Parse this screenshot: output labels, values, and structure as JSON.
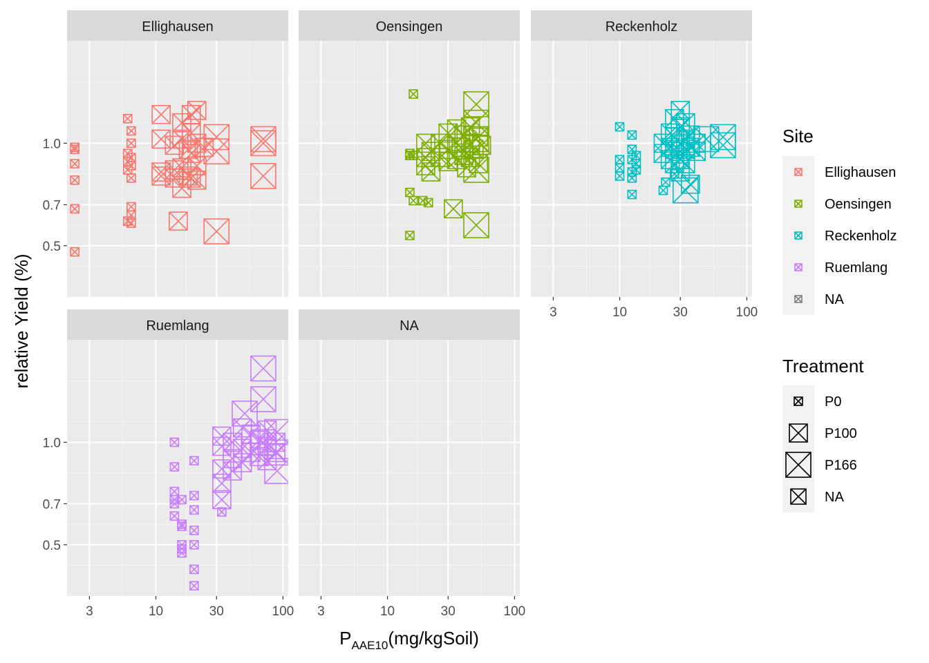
{
  "chart_data": {
    "type": "scatter",
    "facets": [
      "Ellighausen",
      "Oensingen",
      "Reckenholz",
      "Ruemlang",
      "NA"
    ],
    "x_scale": "log10",
    "xlim": [
      2,
      110
    ],
    "ylim": [
      0.25,
      1.5
    ],
    "x_ticks": [
      3,
      10,
      30,
      100
    ],
    "x_tick_labels": [
      "3",
      "10",
      "30",
      "100"
    ],
    "y_ticks": [
      0.5,
      0.7,
      1.0
    ],
    "y_tick_labels": [
      "0.5",
      "0.7",
      "1.0"
    ],
    "xlabel_main": "P",
    "xlabel_sub": "AAE10",
    "xlabel_rest": "(mg/kgSoil)",
    "ylabel": "relative Yield (%)",
    "grid": true,
    "legend_position": "right",
    "site_legend": {
      "title": "Site",
      "entries": [
        {
          "label": "Ellighausen",
          "color": "#F8766D"
        },
        {
          "label": "Oensingen",
          "color": "#7CAE00"
        },
        {
          "label": "Reckenholz",
          "color": "#00BFC4"
        },
        {
          "label": "Ruemlang",
          "color": "#C77CFF"
        },
        {
          "label": "NA",
          "color": "#7F7F7F"
        }
      ]
    },
    "treatment_legend": {
      "title": "Treatment",
      "entries": [
        {
          "label": "P0",
          "size": "small"
        },
        {
          "label": "P100",
          "size": "medium"
        },
        {
          "label": "P166",
          "size": "large"
        },
        {
          "label": "NA",
          "size": "medium-small"
        }
      ]
    },
    "series": [
      {
        "facet": "Ellighausen",
        "color": "#F8766D",
        "points": [
          {
            "x": 2.3,
            "y": 0.98,
            "t": "P0"
          },
          {
            "x": 2.3,
            "y": 0.97,
            "t": "P0"
          },
          {
            "x": 2.3,
            "y": 0.9,
            "t": "P0"
          },
          {
            "x": 2.3,
            "y": 0.82,
            "t": "P0"
          },
          {
            "x": 2.3,
            "y": 0.68,
            "t": "P0"
          },
          {
            "x": 2.3,
            "y": 0.47,
            "t": "P0"
          },
          {
            "x": 6.0,
            "y": 1.12,
            "t": "P0"
          },
          {
            "x": 6.0,
            "y": 0.95,
            "t": "P0"
          },
          {
            "x": 6.0,
            "y": 0.91,
            "t": "P0"
          },
          {
            "x": 6.0,
            "y": 0.87,
            "t": "P0"
          },
          {
            "x": 6.0,
            "y": 0.62,
            "t": "P0"
          },
          {
            "x": 6.4,
            "y": 1.06,
            "t": "P0"
          },
          {
            "x": 6.4,
            "y": 1.0,
            "t": "P0"
          },
          {
            "x": 6.4,
            "y": 0.93,
            "t": "P0"
          },
          {
            "x": 6.4,
            "y": 0.89,
            "t": "P0"
          },
          {
            "x": 6.4,
            "y": 0.83,
            "t": "P0"
          },
          {
            "x": 6.4,
            "y": 0.69,
            "t": "P0"
          },
          {
            "x": 6.4,
            "y": 0.65,
            "t": "P0"
          },
          {
            "x": 6.4,
            "y": 0.61,
            "t": "P0"
          },
          {
            "x": 11,
            "y": 1.14,
            "t": "P100"
          },
          {
            "x": 11,
            "y": 1.02,
            "t": "P100"
          },
          {
            "x": 11,
            "y": 0.86,
            "t": "P100"
          },
          {
            "x": 11,
            "y": 0.84,
            "t": "P100"
          },
          {
            "x": 14,
            "y": 0.99,
            "t": "P100"
          },
          {
            "x": 14,
            "y": 0.87,
            "t": "P100"
          },
          {
            "x": 14,
            "y": 0.83,
            "t": "P100"
          },
          {
            "x": 15,
            "y": 0.62,
            "t": "P100"
          },
          {
            "x": 16,
            "y": 1.1,
            "t": "P100"
          },
          {
            "x": 16,
            "y": 1.02,
            "t": "P100"
          },
          {
            "x": 16,
            "y": 0.88,
            "t": "P100"
          },
          {
            "x": 16,
            "y": 0.78,
            "t": "P100"
          },
          {
            "x": 18,
            "y": 0.97,
            "t": "P100"
          },
          {
            "x": 18,
            "y": 0.84,
            "t": "P100"
          },
          {
            "x": 19,
            "y": 1.14,
            "t": "P100"
          },
          {
            "x": 19,
            "y": 1.05,
            "t": "P100"
          },
          {
            "x": 19,
            "y": 0.95,
            "t": "P100"
          },
          {
            "x": 19,
            "y": 0.83,
            "t": "P100"
          },
          {
            "x": 21,
            "y": 1.16,
            "t": "P100"
          },
          {
            "x": 21,
            "y": 1.0,
            "t": "P100"
          },
          {
            "x": 21,
            "y": 0.89,
            "t": "P100"
          },
          {
            "x": 21,
            "y": 0.82,
            "t": "P100"
          },
          {
            "x": 24,
            "y": 0.98,
            "t": "P100"
          },
          {
            "x": 30,
            "y": 1.03,
            "t": "P166"
          },
          {
            "x": 30,
            "y": 0.96,
            "t": "P166"
          },
          {
            "x": 30,
            "y": 0.57,
            "t": "P166"
          },
          {
            "x": 70,
            "y": 1.02,
            "t": "P166"
          },
          {
            "x": 70,
            "y": 1.0,
            "t": "P166"
          },
          {
            "x": 70,
            "y": 0.84,
            "t": "P166"
          }
        ]
      },
      {
        "facet": "Oensingen",
        "color": "#7CAE00",
        "points": [
          {
            "x": 16,
            "y": 1.24,
            "t": "P0"
          },
          {
            "x": 15,
            "y": 0.95,
            "t": "P0"
          },
          {
            "x": 15,
            "y": 0.94,
            "t": "P0"
          },
          {
            "x": 15,
            "y": 0.76,
            "t": "P0"
          },
          {
            "x": 15,
            "y": 0.55,
            "t": "P0"
          },
          {
            "x": 16,
            "y": 0.72,
            "t": "P0"
          },
          {
            "x": 16,
            "y": 0.94,
            "t": "P0"
          },
          {
            "x": 19,
            "y": 0.72,
            "t": "P0"
          },
          {
            "x": 21,
            "y": 0.71,
            "t": "P0"
          },
          {
            "x": 20,
            "y": 1.0,
            "t": "P100"
          },
          {
            "x": 20,
            "y": 0.93,
            "t": "P100"
          },
          {
            "x": 20,
            "y": 0.89,
            "t": "P100"
          },
          {
            "x": 22,
            "y": 0.86,
            "t": "P100"
          },
          {
            "x": 22,
            "y": 0.96,
            "t": "P100"
          },
          {
            "x": 26,
            "y": 1.0,
            "t": "P100"
          },
          {
            "x": 26,
            "y": 0.93,
            "t": "P100"
          },
          {
            "x": 30,
            "y": 1.05,
            "t": "P100"
          },
          {
            "x": 30,
            "y": 0.97,
            "t": "P100"
          },
          {
            "x": 30,
            "y": 0.91,
            "t": "P100"
          },
          {
            "x": 33,
            "y": 0.68,
            "t": "P100"
          },
          {
            "x": 35,
            "y": 1.07,
            "t": "P100"
          },
          {
            "x": 35,
            "y": 1.0,
            "t": "P100"
          },
          {
            "x": 35,
            "y": 0.92,
            "t": "P100"
          },
          {
            "x": 38,
            "y": 0.98,
            "t": "P100"
          },
          {
            "x": 40,
            "y": 1.04,
            "t": "P100"
          },
          {
            "x": 40,
            "y": 0.94,
            "t": "P100"
          },
          {
            "x": 42,
            "y": 0.88,
            "t": "P100"
          },
          {
            "x": 45,
            "y": 1.08,
            "t": "P100"
          },
          {
            "x": 45,
            "y": 1.0,
            "t": "P100"
          },
          {
            "x": 45,
            "y": 0.93,
            "t": "P100"
          },
          {
            "x": 48,
            "y": 0.97,
            "t": "P100"
          },
          {
            "x": 52,
            "y": 1.03,
            "t": "P100"
          },
          {
            "x": 52,
            "y": 0.9,
            "t": "P100"
          },
          {
            "x": 55,
            "y": 0.99,
            "t": "P100"
          },
          {
            "x": 50,
            "y": 1.19,
            "t": "P166"
          },
          {
            "x": 50,
            "y": 1.1,
            "t": "P166"
          },
          {
            "x": 50,
            "y": 1.02,
            "t": "P166"
          },
          {
            "x": 50,
            "y": 0.87,
            "t": "P166"
          },
          {
            "x": 50,
            "y": 0.6,
            "t": "P166"
          }
        ]
      },
      {
        "facet": "Reckenholz",
        "color": "#00BFC4",
        "points": [
          {
            "x": 10,
            "y": 1.08,
            "t": "P0"
          },
          {
            "x": 10,
            "y": 0.92,
            "t": "P0"
          },
          {
            "x": 10,
            "y": 0.88,
            "t": "P0"
          },
          {
            "x": 10,
            "y": 0.84,
            "t": "P0"
          },
          {
            "x": 12.5,
            "y": 1.04,
            "t": "P0"
          },
          {
            "x": 12.5,
            "y": 0.97,
            "t": "P0"
          },
          {
            "x": 12.5,
            "y": 0.92,
            "t": "P0"
          },
          {
            "x": 12.5,
            "y": 0.86,
            "t": "P0"
          },
          {
            "x": 12.5,
            "y": 0.83,
            "t": "P0"
          },
          {
            "x": 12.5,
            "y": 0.75,
            "t": "P0"
          },
          {
            "x": 13.5,
            "y": 0.94,
            "t": "P0"
          },
          {
            "x": 13.5,
            "y": 0.9,
            "t": "P0"
          },
          {
            "x": 13.5,
            "y": 0.87,
            "t": "P0"
          },
          {
            "x": 22,
            "y": 0.77,
            "t": "P0"
          },
          {
            "x": 23,
            "y": 0.81,
            "t": "P0"
          },
          {
            "x": 27,
            "y": 0.85,
            "t": "P0"
          },
          {
            "x": 22,
            "y": 1.0,
            "t": "P100"
          },
          {
            "x": 22,
            "y": 0.95,
            "t": "P100"
          },
          {
            "x": 25,
            "y": 1.05,
            "t": "P100"
          },
          {
            "x": 25,
            "y": 0.98,
            "t": "P100"
          },
          {
            "x": 25,
            "y": 0.92,
            "t": "P100"
          },
          {
            "x": 27,
            "y": 1.12,
            "t": "P100"
          },
          {
            "x": 27,
            "y": 1.03,
            "t": "P100"
          },
          {
            "x": 27,
            "y": 0.97,
            "t": "P100"
          },
          {
            "x": 27,
            "y": 0.9,
            "t": "P100"
          },
          {
            "x": 30,
            "y": 1.16,
            "t": "P100"
          },
          {
            "x": 30,
            "y": 1.08,
            "t": "P100"
          },
          {
            "x": 30,
            "y": 1.0,
            "t": "P100"
          },
          {
            "x": 30,
            "y": 0.96,
            "t": "P100"
          },
          {
            "x": 30,
            "y": 0.92,
            "t": "P100"
          },
          {
            "x": 30,
            "y": 0.86,
            "t": "P100"
          },
          {
            "x": 33,
            "y": 1.1,
            "t": "P100"
          },
          {
            "x": 33,
            "y": 1.02,
            "t": "P100"
          },
          {
            "x": 33,
            "y": 0.97,
            "t": "P100"
          },
          {
            "x": 33,
            "y": 0.9,
            "t": "P100"
          },
          {
            "x": 36,
            "y": 1.04,
            "t": "P100"
          },
          {
            "x": 36,
            "y": 0.98,
            "t": "P100"
          },
          {
            "x": 36,
            "y": 0.8,
            "t": "P100"
          },
          {
            "x": 40,
            "y": 1.0,
            "t": "P100"
          },
          {
            "x": 40,
            "y": 0.96,
            "t": "P100"
          },
          {
            "x": 33,
            "y": 0.77,
            "t": "P166"
          },
          {
            "x": 48,
            "y": 1.02,
            "t": "P166"
          },
          {
            "x": 65,
            "y": 1.03,
            "t": "P166"
          },
          {
            "x": 65,
            "y": 0.99,
            "t": "P166"
          }
        ]
      },
      {
        "facet": "Ruemlang",
        "color": "#C77CFF",
        "points": [
          {
            "x": 14,
            "y": 1.0,
            "t": "P0"
          },
          {
            "x": 14,
            "y": 0.88,
            "t": "P0"
          },
          {
            "x": 14,
            "y": 0.76,
            "t": "P0"
          },
          {
            "x": 14,
            "y": 0.72,
            "t": "P0"
          },
          {
            "x": 14,
            "y": 0.7,
            "t": "P0"
          },
          {
            "x": 14,
            "y": 0.64,
            "t": "P0"
          },
          {
            "x": 16,
            "y": 0.72,
            "t": "P0"
          },
          {
            "x": 16,
            "y": 0.6,
            "t": "P0"
          },
          {
            "x": 16,
            "y": 0.59,
            "t": "P0"
          },
          {
            "x": 16,
            "y": 0.5,
            "t": "P0"
          },
          {
            "x": 16,
            "y": 0.48,
            "t": "P0"
          },
          {
            "x": 16,
            "y": 0.46,
            "t": "P0"
          },
          {
            "x": 20,
            "y": 0.91,
            "t": "P0"
          },
          {
            "x": 20,
            "y": 0.74,
            "t": "P0"
          },
          {
            "x": 20,
            "y": 0.67,
            "t": "P0"
          },
          {
            "x": 20,
            "y": 0.57,
            "t": "P0"
          },
          {
            "x": 20,
            "y": 0.5,
            "t": "P0"
          },
          {
            "x": 20,
            "y": 0.38,
            "t": "P0"
          },
          {
            "x": 20,
            "y": 0.3,
            "t": "P0"
          },
          {
            "x": 33,
            "y": 0.66,
            "t": "P0"
          },
          {
            "x": 33,
            "y": 1.03,
            "t": "P100"
          },
          {
            "x": 33,
            "y": 0.98,
            "t": "P100"
          },
          {
            "x": 33,
            "y": 0.87,
            "t": "P100"
          },
          {
            "x": 33,
            "y": 0.8,
            "t": "P100"
          },
          {
            "x": 33,
            "y": 0.72,
            "t": "P100"
          },
          {
            "x": 40,
            "y": 1.0,
            "t": "P100"
          },
          {
            "x": 40,
            "y": 0.92,
            "t": "P100"
          },
          {
            "x": 40,
            "y": 0.86,
            "t": "P100"
          },
          {
            "x": 48,
            "y": 1.07,
            "t": "P100"
          },
          {
            "x": 48,
            "y": 0.97,
            "t": "P100"
          },
          {
            "x": 48,
            "y": 0.9,
            "t": "P100"
          },
          {
            "x": 56,
            "y": 1.04,
            "t": "P100"
          },
          {
            "x": 56,
            "y": 0.95,
            "t": "P100"
          },
          {
            "x": 65,
            "y": 1.01,
            "t": "P100"
          },
          {
            "x": 65,
            "y": 0.93,
            "t": "P100"
          },
          {
            "x": 75,
            "y": 1.06,
            "t": "P100"
          },
          {
            "x": 75,
            "y": 0.98,
            "t": "P100"
          },
          {
            "x": 75,
            "y": 0.91,
            "t": "P100"
          },
          {
            "x": 88,
            "y": 1.0,
            "t": "P100"
          },
          {
            "x": 88,
            "y": 0.95,
            "t": "P100"
          },
          {
            "x": 50,
            "y": 1.14,
            "t": "P166"
          },
          {
            "x": 70,
            "y": 1.36,
            "t": "P166"
          },
          {
            "x": 70,
            "y": 1.21,
            "t": "P166"
          },
          {
            "x": 70,
            "y": 1.0,
            "t": "P166"
          },
          {
            "x": 90,
            "y": 1.05,
            "t": "P166"
          },
          {
            "x": 90,
            "y": 0.95,
            "t": "P166"
          },
          {
            "x": 90,
            "y": 0.86,
            "t": "P166"
          }
        ]
      }
    ]
  }
}
